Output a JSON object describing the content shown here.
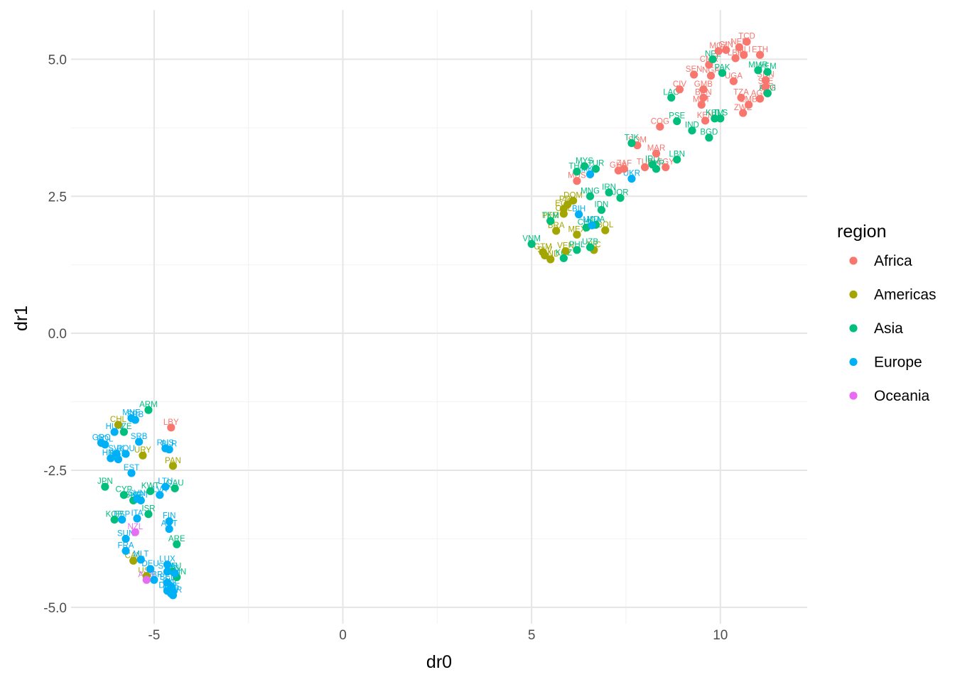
{
  "chart_data": {
    "type": "scatter",
    "title": "",
    "xlabel": "dr0",
    "ylabel": "dr1",
    "xlim": [
      -7.2,
      12.3
    ],
    "ylim": [
      -5.3,
      5.9
    ],
    "x_ticks": [
      -5,
      0,
      5,
      10
    ],
    "x_tick_labels": [
      "-5",
      "0",
      "5",
      "10"
    ],
    "y_ticks": [
      -5,
      -2.5,
      0,
      2.5,
      5
    ],
    "y_tick_labels": [
      "-5.0",
      "-2.5",
      "0.0",
      "2.5",
      "5.0"
    ],
    "grid": true,
    "legend": {
      "title": "region",
      "position": "right",
      "entries": [
        {
          "name": "Africa",
          "color": "#F8766D"
        },
        {
          "name": "Americas",
          "color": "#A3A500"
        },
        {
          "name": "Asia",
          "color": "#00BF7D"
        },
        {
          "name": "Europe",
          "color": "#00B0F6"
        },
        {
          "name": "Oceania",
          "color": "#E76BF3"
        }
      ]
    },
    "series": [
      {
        "name": "Africa",
        "color": "#F8766D",
        "points": [
          {
            "x": 10.7,
            "y": 5.32,
            "label": "TCD"
          },
          {
            "x": 10.5,
            "y": 5.22,
            "label": "NER"
          },
          {
            "x": 9.95,
            "y": 5.15,
            "label": "MOZ"
          },
          {
            "x": 10.15,
            "y": 5.17,
            "label": "GIN"
          },
          {
            "x": 10.4,
            "y": 5.02,
            "label": "LBR"
          },
          {
            "x": 10.62,
            "y": 5.08,
            "label": "MLI"
          },
          {
            "x": 11.05,
            "y": 5.08,
            "label": "ETH"
          },
          {
            "x": 9.7,
            "y": 4.9,
            "label": "CMR"
          },
          {
            "x": 9.3,
            "y": 4.72,
            "label": "SEN"
          },
          {
            "x": 9.75,
            "y": 4.7,
            "label": "NGA"
          },
          {
            "x": 10.35,
            "y": 4.6,
            "label": "UGA"
          },
          {
            "x": 11.2,
            "y": 4.62,
            "label": "SDN"
          },
          {
            "x": 11.2,
            "y": 4.5,
            "label": "SLE"
          },
          {
            "x": 8.92,
            "y": 4.45,
            "label": "CIV"
          },
          {
            "x": 9.55,
            "y": 4.45,
            "label": "GMB"
          },
          {
            "x": 11.25,
            "y": 4.38,
            "label": "MWI"
          },
          {
            "x": 9.55,
            "y": 4.3,
            "label": "BEN"
          },
          {
            "x": 10.55,
            "y": 4.3,
            "label": "TZA"
          },
          {
            "x": 11.05,
            "y": 4.28,
            "label": "AGO"
          },
          {
            "x": 9.5,
            "y": 4.17,
            "label": "MRT"
          },
          {
            "x": 10.75,
            "y": 4.17,
            "label": "ZMB"
          },
          {
            "x": 10.6,
            "y": 4.02,
            "label": "ZWE"
          },
          {
            "x": 9.6,
            "y": 3.88,
            "label": "KEN"
          },
          {
            "x": 8.4,
            "y": 3.77,
            "label": "COG"
          },
          {
            "x": 7.8,
            "y": 3.43,
            "label": "SOM"
          },
          {
            "x": 8.3,
            "y": 3.28,
            "label": "MAR"
          },
          {
            "x": 8.0,
            "y": 3.03,
            "label": "TUN"
          },
          {
            "x": 8.55,
            "y": 3.03,
            "label": "EGY"
          },
          {
            "x": 7.45,
            "y": 3.0,
            "label": "ZAF"
          },
          {
            "x": 7.3,
            "y": 2.97,
            "label": "GHA"
          },
          {
            "x": 6.2,
            "y": 2.78,
            "label": "MUS"
          },
          {
            "x": -4.55,
            "y": -1.72,
            "label": "LBY"
          }
        ]
      },
      {
        "name": "Americas",
        "color": "#A3A500",
        "points": [
          {
            "x": 6.1,
            "y": 2.42,
            "label": "DOM"
          },
          {
            "x": 5.95,
            "y": 2.35,
            "label": "PRY"
          },
          {
            "x": 5.85,
            "y": 2.27,
            "label": "ECU"
          },
          {
            "x": 5.85,
            "y": 2.18,
            "label": "COL"
          },
          {
            "x": 5.5,
            "y": 2.05,
            "label": "PER"
          },
          {
            "x": 5.65,
            "y": 1.87,
            "label": "BRA"
          },
          {
            "x": 6.2,
            "y": 1.8,
            "label": "MEX"
          },
          {
            "x": 6.95,
            "y": 1.88,
            "label": "BOL"
          },
          {
            "x": 5.3,
            "y": 1.48,
            "label": "GTM"
          },
          {
            "x": 5.35,
            "y": 1.42,
            "label": "SLV"
          },
          {
            "x": 5.5,
            "y": 1.35,
            "label": "HND"
          },
          {
            "x": 5.9,
            "y": 1.5,
            "label": "VEN"
          },
          {
            "x": 6.65,
            "y": 1.52,
            "label": "NIC"
          },
          {
            "x": -5.95,
            "y": -1.67,
            "label": "CHL"
          },
          {
            "x": -5.3,
            "y": -2.23,
            "label": "URY"
          },
          {
            "x": -4.5,
            "y": -2.42,
            "label": "PAN"
          },
          {
            "x": -5.55,
            "y": -4.15,
            "label": "CAN"
          },
          {
            "x": -5.2,
            "y": -4.43,
            "label": "USA"
          }
        ]
      },
      {
        "name": "Asia",
        "color": "#00BF7D",
        "points": [
          {
            "x": 9.8,
            "y": 5.0,
            "label": "NPL"
          },
          {
            "x": 10.05,
            "y": 4.75,
            "label": "PAK"
          },
          {
            "x": 11.0,
            "y": 4.8,
            "label": "MMR"
          },
          {
            "x": 11.25,
            "y": 4.77,
            "label": "YEM"
          },
          {
            "x": 11.25,
            "y": 4.38,
            "label": "AFG"
          },
          {
            "x": 8.7,
            "y": 4.3,
            "label": "LAO"
          },
          {
            "x": 9.85,
            "y": 3.92,
            "label": "KHM"
          },
          {
            "x": 10.0,
            "y": 3.92,
            "label": "TLS"
          },
          {
            "x": 8.85,
            "y": 3.87,
            "label": "PSE"
          },
          {
            "x": 9.25,
            "y": 3.7,
            "label": "IND"
          },
          {
            "x": 9.7,
            "y": 3.57,
            "label": "BGD"
          },
          {
            "x": 7.65,
            "y": 3.47,
            "label": "TJK"
          },
          {
            "x": 8.85,
            "y": 3.17,
            "label": "LBN"
          },
          {
            "x": 8.2,
            "y": 3.08,
            "label": "IRQ"
          },
          {
            "x": 8.3,
            "y": 3.0,
            "label": "SYR"
          },
          {
            "x": 6.4,
            "y": 3.05,
            "label": "MYS"
          },
          {
            "x": 6.7,
            "y": 3.0,
            "label": "TUR"
          },
          {
            "x": 6.2,
            "y": 2.95,
            "label": "THA"
          },
          {
            "x": 6.55,
            "y": 2.5,
            "label": "MNG"
          },
          {
            "x": 7.05,
            "y": 2.57,
            "label": "IRN"
          },
          {
            "x": 7.35,
            "y": 2.47,
            "label": "JOR"
          },
          {
            "x": 6.85,
            "y": 2.25,
            "label": "IDN"
          },
          {
            "x": 5.5,
            "y": 2.05,
            "label": "TKM"
          },
          {
            "x": 6.45,
            "y": 1.93,
            "label": "CHN"
          },
          {
            "x": 6.7,
            "y": 1.98,
            "label": "MDA"
          },
          {
            "x": 5.0,
            "y": 1.63,
            "label": "VNM"
          },
          {
            "x": 6.2,
            "y": 1.52,
            "label": "PHL"
          },
          {
            "x": 6.55,
            "y": 1.57,
            "label": "UZB"
          },
          {
            "x": 5.85,
            "y": 1.37,
            "label": "KGZ"
          },
          {
            "x": -5.15,
            "y": -1.4,
            "label": "ARM"
          },
          {
            "x": -5.8,
            "y": -1.8,
            "label": "AZE"
          },
          {
            "x": -4.45,
            "y": -2.83,
            "label": "QAU"
          },
          {
            "x": -5.1,
            "y": -2.88,
            "label": "KWT"
          },
          {
            "x": -6.3,
            "y": -2.8,
            "label": "JPN"
          },
          {
            "x": -5.8,
            "y": -2.95,
            "label": "CYP"
          },
          {
            "x": -5.55,
            "y": -3.05,
            "label": "BHR"
          },
          {
            "x": -5.15,
            "y": -3.3,
            "label": "ISR"
          },
          {
            "x": -6.05,
            "y": -3.4,
            "label": "KOR"
          },
          {
            "x": -4.4,
            "y": -3.85,
            "label": "ARE"
          },
          {
            "x": -4.5,
            "y": -4.35,
            "label": "SAU"
          },
          {
            "x": -4.4,
            "y": -4.45,
            "label": "OMN"
          }
        ]
      },
      {
        "name": "Europe",
        "color": "#00B0F6",
        "points": [
          {
            "x": 6.55,
            "y": 2.9,
            "label": "MKD"
          },
          {
            "x": 7.65,
            "y": 2.82,
            "label": "UKR"
          },
          {
            "x": 6.25,
            "y": 2.17,
            "label": "BIH"
          },
          {
            "x": 6.6,
            "y": 1.97,
            "label": "MDA"
          },
          {
            "x": -5.6,
            "y": -1.55,
            "label": "MNE"
          },
          {
            "x": -5.5,
            "y": -1.58,
            "label": "SRB"
          },
          {
            "x": -6.05,
            "y": -1.8,
            "label": "HUN"
          },
          {
            "x": -5.4,
            "y": -1.98,
            "label": "SRB"
          },
          {
            "x": -6.4,
            "y": -2.0,
            "label": "GRC"
          },
          {
            "x": -6.3,
            "y": -2.03,
            "label": "POL"
          },
          {
            "x": -4.7,
            "y": -2.1,
            "label": "RUS"
          },
          {
            "x": -4.6,
            "y": -2.12,
            "label": "BLR"
          },
          {
            "x": -6.0,
            "y": -2.2,
            "label": "SVK"
          },
          {
            "x": -5.75,
            "y": -2.2,
            "label": "ROU"
          },
          {
            "x": -6.15,
            "y": -2.28,
            "label": "HRV"
          },
          {
            "x": -5.95,
            "y": -2.3,
            "label": "BGR"
          },
          {
            "x": -5.6,
            "y": -2.55,
            "label": "EST"
          },
          {
            "x": -4.7,
            "y": -2.8,
            "label": "LTU"
          },
          {
            "x": -4.85,
            "y": -2.95,
            "label": "LVA"
          },
          {
            "x": -5.45,
            "y": -3.02,
            "label": "SVN"
          },
          {
            "x": -5.35,
            "y": -3.05,
            "label": "PRT"
          },
          {
            "x": -5.85,
            "y": -3.4,
            "label": "ESP"
          },
          {
            "x": -5.45,
            "y": -3.38,
            "label": "ITA"
          },
          {
            "x": -4.6,
            "y": -3.43,
            "label": "FIN"
          },
          {
            "x": -4.6,
            "y": -3.57,
            "label": "AUT"
          },
          {
            "x": -5.75,
            "y": -3.75,
            "label": "SUN"
          },
          {
            "x": -5.75,
            "y": -3.97,
            "label": "FRA"
          },
          {
            "x": -5.35,
            "y": -4.13,
            "label": "MLT"
          },
          {
            "x": -4.65,
            "y": -4.22,
            "label": "LUX"
          },
          {
            "x": -5.1,
            "y": -4.3,
            "label": "DEU"
          },
          {
            "x": -4.65,
            "y": -4.35,
            "label": "SWE"
          },
          {
            "x": -4.45,
            "y": -4.38,
            "label": "IRL"
          },
          {
            "x": -5.0,
            "y": -4.5,
            "label": "GBR"
          },
          {
            "x": -4.65,
            "y": -4.55,
            "label": "BEL"
          },
          {
            "x": -4.55,
            "y": -4.62,
            "label": "CHE"
          },
          {
            "x": -4.65,
            "y": -4.7,
            "label": "DNK"
          },
          {
            "x": -4.55,
            "y": -4.75,
            "label": "NLD"
          },
          {
            "x": -4.5,
            "y": -4.78,
            "label": "NOR"
          },
          {
            "x": -4.5,
            "y": -4.72,
            "label": "ISL"
          }
        ]
      },
      {
        "name": "Oceania",
        "color": "#E76BF3",
        "points": [
          {
            "x": -5.5,
            "y": -3.63,
            "label": "NZL"
          },
          {
            "x": -5.2,
            "y": -4.5,
            "label": "AUS"
          }
        ]
      }
    ]
  }
}
